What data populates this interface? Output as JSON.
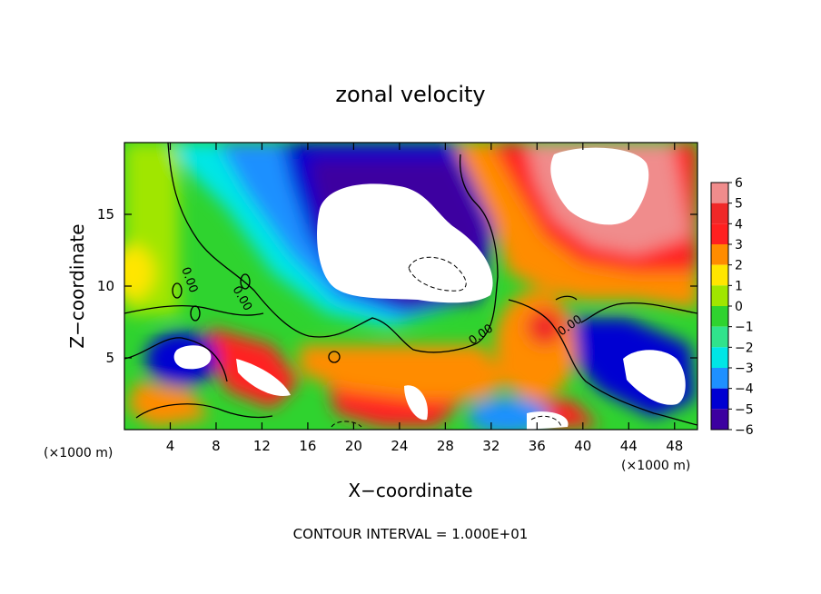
{
  "chart_data": {
    "type": "heatmap",
    "title": "zonal velocity",
    "xlabel": "X−coordinate",
    "ylabel": "Z−coordinate",
    "x_unit_label_left": "(×1000 m)",
    "x_unit_label_right": "(×1000 m)",
    "footer": "CONTOUR INTERVAL = 1.000E+01",
    "xlim": [
      0,
      50
    ],
    "ylim": [
      0,
      20
    ],
    "x_ticks": [
      4,
      8,
      12,
      16,
      20,
      24,
      28,
      32,
      36,
      40,
      44,
      48
    ],
    "x_tick_labels": [
      "4",
      "8",
      "12",
      "16",
      "20",
      "24",
      "28",
      "32",
      "36",
      "40",
      "44",
      "48"
    ],
    "y_ticks": [
      5,
      10,
      15
    ],
    "y_tick_labels": [
      "5",
      "10",
      "15"
    ],
    "grid": false,
    "colorbar": {
      "levels": [
        6,
        5,
        4,
        3,
        2,
        1,
        0,
        -1,
        -2,
        -3,
        -4,
        -5,
        -6
      ],
      "labels": [
        "6",
        "5",
        "4",
        "3",
        "2",
        "1",
        "0",
        "−1",
        "−2",
        "−3",
        "−4",
        "−5",
        "−6"
      ],
      "colors": [
        "#f08c8c",
        "#f02828",
        "#ff2020",
        "#ff8c00",
        "#ffe600",
        "#a0e600",
        "#2fd32f",
        "#30e38c",
        "#00e6e6",
        "#1e90ff",
        "#0000d2",
        "#3c00a0",
        "#8c00b4"
      ],
      "placement": "right"
    },
    "contour_labels": [
      "0.00",
      "0.00",
      "0.00",
      "0.00"
    ]
  }
}
